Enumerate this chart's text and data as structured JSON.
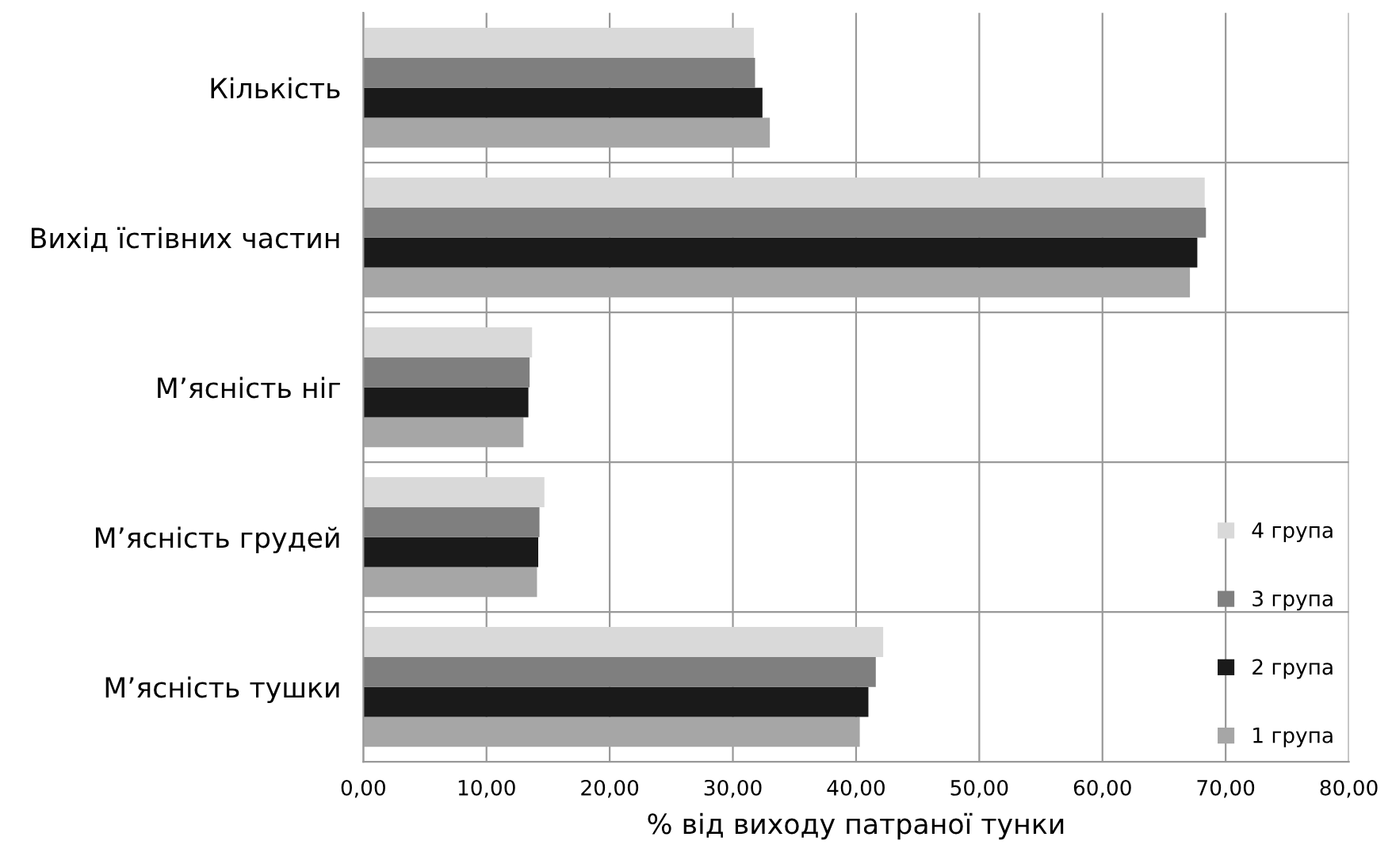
{
  "chart_data": {
    "type": "bar",
    "orientation": "horizontal",
    "xlabel": "% від виходу патраної тунки",
    "categories": [
      "Кількість",
      "Вихід їстівних частин",
      "М’ясність ніг",
      "М’ясність грудей",
      "М’ясність тушки"
    ],
    "series": [
      {
        "name": "1 група",
        "color": "#a6a6a6",
        "values": [
          33.0,
          67.1,
          13.0,
          14.1,
          40.3
        ]
      },
      {
        "name": "2 група",
        "color": "#1a1a1a",
        "values": [
          32.4,
          67.7,
          13.4,
          14.2,
          41.0
        ]
      },
      {
        "name": "3 група",
        "color": "#7f7f7f",
        "values": [
          31.8,
          68.4,
          13.5,
          14.3,
          41.6
        ]
      },
      {
        "name": "4 група",
        "color": "#d9d9d9",
        "values": [
          31.7,
          68.3,
          13.7,
          14.7,
          42.2
        ]
      }
    ],
    "xlim": [
      0,
      80
    ],
    "xticks": [
      {
        "value": 0,
        "label": "0,00"
      },
      {
        "value": 10,
        "label": "10,00"
      },
      {
        "value": 20,
        "label": "20,00"
      },
      {
        "value": 30,
        "label": "30,00"
      },
      {
        "value": 40,
        "label": "40,00"
      },
      {
        "value": 50,
        "label": "50,00"
      },
      {
        "value": 60,
        "label": "60,00"
      },
      {
        "value": 70,
        "label": "70,00"
      },
      {
        "value": 80,
        "label": "80,00"
      }
    ],
    "grid": true,
    "legend": "bottom right"
  }
}
